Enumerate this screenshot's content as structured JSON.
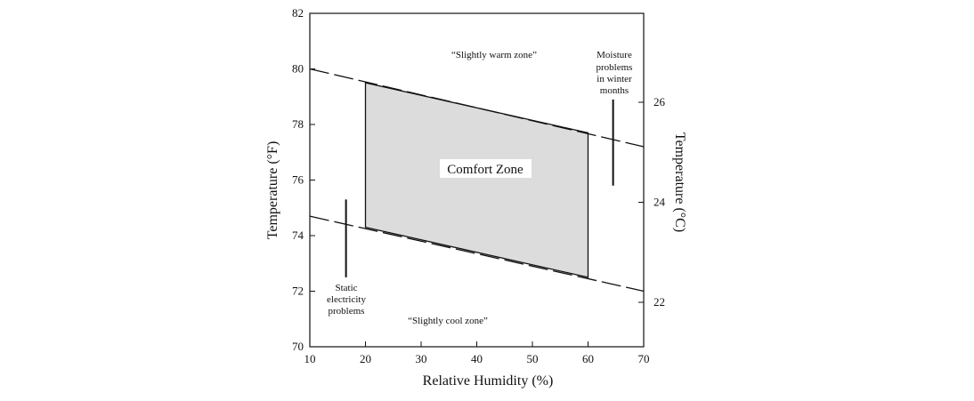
{
  "chart_data": {
    "type": "area",
    "title": "",
    "xlabel": "Relative Humidity (%)",
    "ylabel": "Temperature (°F)",
    "y2label": "Temperature (°C)",
    "xlim": [
      10,
      70
    ],
    "ylim": [
      70,
      82
    ],
    "x_ticks": [
      10,
      20,
      30,
      40,
      50,
      60,
      70
    ],
    "y_ticks": [
      70,
      72,
      74,
      76,
      78,
      80,
      82
    ],
    "y2_ticks": [
      22,
      24,
      26
    ],
    "comfort_zone": {
      "label": "Comfort Zone",
      "fill": "#dcdcdc",
      "polygon": [
        [
          20,
          79.5
        ],
        [
          60,
          77.7
        ],
        [
          60,
          72.5
        ],
        [
          20,
          74.3
        ]
      ]
    },
    "upper_boundary": {
      "x": [
        10,
        70
      ],
      "y": [
        80.0,
        77.2
      ]
    },
    "lower_boundary": {
      "x": [
        10,
        70
      ],
      "y": [
        74.7,
        72.0
      ]
    },
    "vertical_markers": [
      {
        "x": 16.5,
        "y_range": [
          72.5,
          75.3
        ]
      },
      {
        "x": 64.5,
        "y_range": [
          75.8,
          78.9
        ]
      }
    ],
    "annotations": {
      "warm_zone": "“Slightly warm zone”",
      "cool_zone": "“Slightly cool zone”",
      "moisture": [
        "Moisture",
        "problems",
        "in winter",
        "months"
      ],
      "static": [
        "Static",
        "electricity",
        "problems"
      ]
    }
  }
}
